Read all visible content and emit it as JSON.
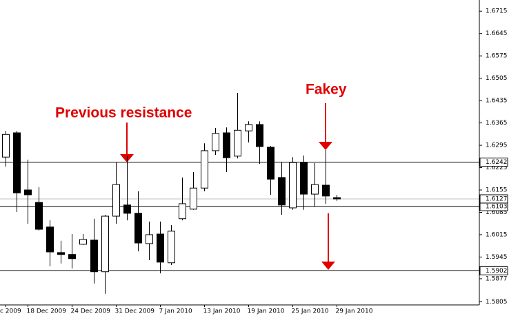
{
  "chart_data": {
    "type": "candlestick",
    "categories": [
      "c 2009",
      null,
      "18 Dec 2009",
      null,
      null,
      null,
      "24 Dec 2009",
      null,
      null,
      null,
      "31 Dec 2009",
      null,
      null,
      null,
      "7 Jan 2010",
      null,
      null,
      null,
      "13 Jan 2010",
      null,
      null,
      null,
      "19 Jan 2010",
      null,
      null,
      null,
      "25 Jan 2010",
      null,
      null,
      null,
      "29 Jan 2010"
    ],
    "open": [
      1.6258,
      1.6334,
      1.6155,
      1.6116,
      1.6039,
      1.5959,
      1.5953,
      1.5985,
      1.5998,
      1.5899,
      1.6073,
      1.6108,
      1.6082,
      1.5987,
      1.6017,
      1.5927,
      1.6065,
      1.6095,
      1.6161,
      1.6278,
      1.6334,
      1.6261,
      1.634,
      1.636,
      1.6289,
      1.6194,
      1.6099,
      1.6241,
      1.6142,
      1.617,
      1.6131
    ],
    "high": [
      1.634,
      1.634,
      1.625,
      1.6164,
      1.606,
      1.5996,
      1.6017,
      1.6017,
      1.6065,
      1.6077,
      1.6241,
      1.6261,
      1.6151,
      1.6056,
      1.6056,
      1.6045,
      1.6194,
      1.6211,
      1.6301,
      1.6349,
      1.6351,
      1.6459,
      1.637,
      1.637,
      1.6293,
      1.6243,
      1.6258,
      1.6263,
      1.6239,
      1.628,
      1.614
    ],
    "low": [
      1.6228,
      1.6086,
      1.6049,
      1.6028,
      1.5916,
      1.5925,
      1.5909,
      1.5983,
      1.5862,
      1.583,
      1.6049,
      1.606,
      1.5963,
      1.5935,
      1.5894,
      1.592,
      1.606,
      1.6093,
      1.6151,
      1.6265,
      1.6211,
      1.6254,
      1.6304,
      1.6237,
      1.614,
      1.6077,
      1.6093,
      1.6093,
      1.6103,
      1.6112,
      1.6121
    ],
    "close": [
      1.6329,
      1.6146,
      1.614,
      1.6032,
      1.5961,
      1.5953,
      1.594,
      1.6,
      1.5899,
      1.6073,
      1.6172,
      1.6082,
      1.5989,
      1.6015,
      1.5929,
      1.6026,
      1.6112,
      1.6161,
      1.6278,
      1.6332,
      1.6256,
      1.6342,
      1.636,
      1.6291,
      1.6189,
      1.6108,
      1.6241,
      1.6142,
      1.6172,
      1.6136,
      1.6127
    ],
    "up_color": "#ffffff",
    "down_color": "#000000",
    "ylim": [
      1.5795,
      1.675
    ],
    "yticks": [
      1.6715,
      1.6645,
      1.6575,
      1.6505,
      1.6435,
      1.6365,
      1.6295,
      1.6225,
      1.6155,
      1.6085,
      1.6015,
      1.5945,
      1.5877,
      1.5805
    ],
    "levels": [
      1.6242,
      1.6103,
      1.5902
    ],
    "bid": 1.6127,
    "annotations": [
      "Previous resistance",
      "Fakey"
    ]
  }
}
